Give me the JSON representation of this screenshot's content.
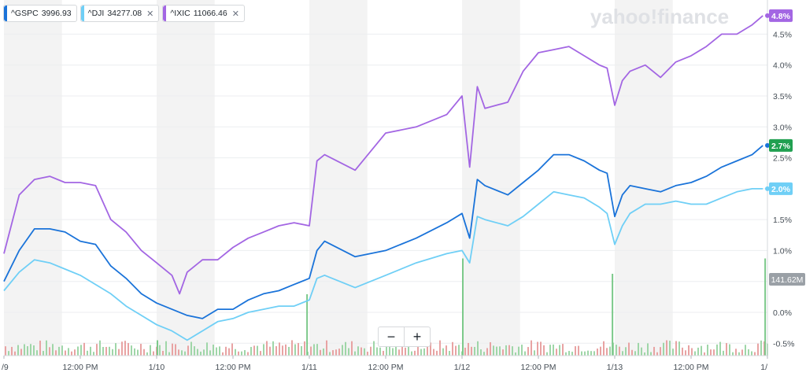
{
  "legend": [
    {
      "symbol": "^GSPC",
      "value": "3996.93",
      "color": "#1a73d9",
      "removable": false
    },
    {
      "symbol": "^DJI",
      "value": "34277.08",
      "color": "#6fcff6",
      "removable": true
    },
    {
      "symbol": "^IXIC",
      "value": "11066.46",
      "color": "#a366e3",
      "removable": true
    }
  ],
  "icons": {
    "close": "close-icon",
    "zoom_out": "minus-icon",
    "zoom_in": "plus-icon"
  },
  "zoom": {
    "out_label": "−",
    "in_label": "+"
  },
  "close_glyph": "✕",
  "watermark": "yahoo!finance",
  "chart_data": {
    "type": "line",
    "xlabels": [
      "/9",
      "12:00 PM",
      "1/10",
      "12:00 PM",
      "1/11",
      "12:00 PM",
      "1/12",
      "12:00 PM",
      "1/13",
      "12:00 PM",
      "1/"
    ],
    "yticks": [
      "-0.5%",
      "0.0%",
      "0.5%",
      "1.0%",
      "1.5%",
      "2.0%",
      "2.5%",
      "3.0%",
      "3.5%",
      "4.0%",
      "4.5%"
    ],
    "ylim": [
      -0.7,
      4.9
    ],
    "grid": true,
    "series": [
      {
        "name": "^GSPC",
        "color": "#1a73d9",
        "end_label": "2.7%",
        "end_label_bg": "#21a051",
        "points": [
          [
            0,
            0.5
          ],
          [
            0.1,
            1.0
          ],
          [
            0.2,
            1.35
          ],
          [
            0.3,
            1.35
          ],
          [
            0.4,
            1.3
          ],
          [
            0.5,
            1.15
          ],
          [
            0.6,
            1.1
          ],
          [
            0.7,
            0.75
          ],
          [
            0.8,
            0.55
          ],
          [
            0.9,
            0.3
          ],
          [
            1.0,
            0.15
          ],
          [
            1.1,
            0.05
          ],
          [
            1.2,
            -0.05
          ],
          [
            1.3,
            -0.1
          ],
          [
            1.4,
            0.05
          ],
          [
            1.5,
            0.05
          ],
          [
            1.6,
            0.2
          ],
          [
            1.7,
            0.3
          ],
          [
            1.8,
            0.35
          ],
          [
            1.9,
            0.45
          ],
          [
            2.0,
            0.55
          ],
          [
            2.05,
            1.0
          ],
          [
            2.1,
            1.15
          ],
          [
            2.3,
            0.9
          ],
          [
            2.5,
            1.0
          ],
          [
            2.7,
            1.2
          ],
          [
            2.9,
            1.45
          ],
          [
            3.0,
            1.6
          ],
          [
            3.05,
            1.2
          ],
          [
            3.1,
            2.15
          ],
          [
            3.15,
            2.05
          ],
          [
            3.3,
            1.9
          ],
          [
            3.4,
            2.1
          ],
          [
            3.5,
            2.3
          ],
          [
            3.6,
            2.55
          ],
          [
            3.7,
            2.55
          ],
          [
            3.8,
            2.45
          ],
          [
            3.9,
            2.3
          ],
          [
            3.95,
            2.25
          ],
          [
            4.0,
            1.55
          ],
          [
            4.05,
            1.9
          ],
          [
            4.1,
            2.05
          ],
          [
            4.2,
            2.0
          ],
          [
            4.3,
            1.95
          ],
          [
            4.4,
            2.05
          ],
          [
            4.5,
            2.1
          ],
          [
            4.6,
            2.2
          ],
          [
            4.7,
            2.35
          ],
          [
            4.8,
            2.45
          ],
          [
            4.9,
            2.55
          ],
          [
            4.97,
            2.7
          ]
        ]
      },
      {
        "name": "^DJI",
        "color": "#6fcff6",
        "end_label": "2.0%",
        "end_label_bg": "#6fcff6",
        "points": [
          [
            0,
            0.35
          ],
          [
            0.1,
            0.65
          ],
          [
            0.2,
            0.85
          ],
          [
            0.3,
            0.8
          ],
          [
            0.4,
            0.7
          ],
          [
            0.5,
            0.6
          ],
          [
            0.6,
            0.45
          ],
          [
            0.7,
            0.3
          ],
          [
            0.8,
            0.1
          ],
          [
            0.9,
            -0.05
          ],
          [
            1.0,
            -0.2
          ],
          [
            1.1,
            -0.3
          ],
          [
            1.2,
            -0.45
          ],
          [
            1.3,
            -0.3
          ],
          [
            1.4,
            -0.15
          ],
          [
            1.5,
            -0.1
          ],
          [
            1.6,
            0.0
          ],
          [
            1.7,
            0.05
          ],
          [
            1.8,
            0.1
          ],
          [
            1.9,
            0.1
          ],
          [
            2.0,
            0.2
          ],
          [
            2.05,
            0.55
          ],
          [
            2.1,
            0.6
          ],
          [
            2.3,
            0.4
          ],
          [
            2.5,
            0.6
          ],
          [
            2.7,
            0.8
          ],
          [
            2.9,
            0.95
          ],
          [
            3.0,
            1.0
          ],
          [
            3.05,
            0.8
          ],
          [
            3.1,
            1.55
          ],
          [
            3.15,
            1.5
          ],
          [
            3.3,
            1.4
          ],
          [
            3.4,
            1.55
          ],
          [
            3.5,
            1.75
          ],
          [
            3.6,
            1.95
          ],
          [
            3.7,
            1.9
          ],
          [
            3.8,
            1.85
          ],
          [
            3.9,
            1.7
          ],
          [
            3.95,
            1.6
          ],
          [
            4.0,
            1.1
          ],
          [
            4.05,
            1.4
          ],
          [
            4.1,
            1.6
          ],
          [
            4.2,
            1.75
          ],
          [
            4.3,
            1.75
          ],
          [
            4.4,
            1.8
          ],
          [
            4.5,
            1.75
          ],
          [
            4.6,
            1.75
          ],
          [
            4.7,
            1.85
          ],
          [
            4.8,
            1.95
          ],
          [
            4.9,
            2.0
          ],
          [
            4.97,
            2.0
          ]
        ]
      },
      {
        "name": "^IXIC",
        "color": "#a366e3",
        "end_label": "4.8%",
        "end_label_bg": "#a366e3",
        "points": [
          [
            0,
            0.95
          ],
          [
            0.1,
            1.9
          ],
          [
            0.2,
            2.15
          ],
          [
            0.3,
            2.2
          ],
          [
            0.4,
            2.1
          ],
          [
            0.5,
            2.1
          ],
          [
            0.6,
            2.05
          ],
          [
            0.7,
            1.5
          ],
          [
            0.8,
            1.3
          ],
          [
            0.9,
            1.0
          ],
          [
            1.0,
            0.8
          ],
          [
            1.1,
            0.6
          ],
          [
            1.15,
            0.3
          ],
          [
            1.2,
            0.65
          ],
          [
            1.3,
            0.85
          ],
          [
            1.4,
            0.85
          ],
          [
            1.5,
            1.05
          ],
          [
            1.6,
            1.2
          ],
          [
            1.7,
            1.3
          ],
          [
            1.8,
            1.4
          ],
          [
            1.9,
            1.45
          ],
          [
            2.0,
            1.4
          ],
          [
            2.05,
            2.45
          ],
          [
            2.1,
            2.55
          ],
          [
            2.3,
            2.3
          ],
          [
            2.5,
            2.9
          ],
          [
            2.7,
            3.0
          ],
          [
            2.9,
            3.2
          ],
          [
            3.0,
            3.5
          ],
          [
            3.05,
            2.35
          ],
          [
            3.1,
            3.65
          ],
          [
            3.15,
            3.3
          ],
          [
            3.3,
            3.4
          ],
          [
            3.4,
            3.9
          ],
          [
            3.5,
            4.2
          ],
          [
            3.6,
            4.25
          ],
          [
            3.7,
            4.3
          ],
          [
            3.8,
            4.15
          ],
          [
            3.9,
            4.0
          ],
          [
            3.95,
            3.95
          ],
          [
            4.0,
            3.35
          ],
          [
            4.05,
            3.75
          ],
          [
            4.1,
            3.9
          ],
          [
            4.2,
            4.0
          ],
          [
            4.3,
            3.8
          ],
          [
            4.4,
            4.05
          ],
          [
            4.5,
            4.15
          ],
          [
            4.6,
            4.3
          ],
          [
            4.7,
            4.5
          ],
          [
            4.8,
            4.5
          ],
          [
            4.9,
            4.65
          ],
          [
            4.97,
            4.8
          ]
        ]
      }
    ],
    "volume": {
      "y_label": "141.62M",
      "spikes": [
        [
          1.0,
          0.15
        ],
        [
          1.98,
          0.6
        ],
        [
          3.0,
          0.95
        ],
        [
          3.98,
          0.8
        ],
        [
          4.98,
          0.95
        ]
      ]
    }
  }
}
